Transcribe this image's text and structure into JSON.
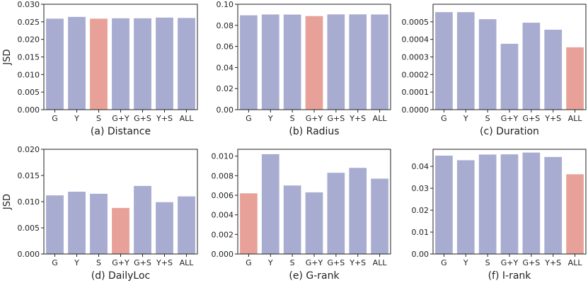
{
  "colors": {
    "default_bar": "#a8acd0",
    "highlight_bar": "#e8a198",
    "axis": "#222222"
  },
  "chart_data": [
    {
      "type": "bar",
      "title": "(a) Distance",
      "ylabel": "JSD",
      "categories": [
        "G",
        "Y",
        "S",
        "G+Y",
        "G+S",
        "Y+S",
        "ALL"
      ],
      "values": [
        0.0259,
        0.0264,
        0.0259,
        0.026,
        0.026,
        0.0262,
        0.0261
      ],
      "highlight": "S",
      "ylim": [
        0,
        0.03
      ],
      "yticks": [
        "0.000",
        "0.005",
        "0.010",
        "0.015",
        "0.020",
        "0.025",
        "0.030"
      ]
    },
    {
      "type": "bar",
      "title": "(b) Radius",
      "ylabel": "",
      "categories": [
        "G",
        "Y",
        "S",
        "G+Y",
        "G+S",
        "Y+S",
        "ALL"
      ],
      "values": [
        0.0895,
        0.0903,
        0.0902,
        0.0888,
        0.0904,
        0.0904,
        0.0903
      ],
      "highlight": "G+Y",
      "ylim": [
        0,
        0.1
      ],
      "yticks": [
        "0.00",
        "0.02",
        "0.04",
        "0.06",
        "0.08",
        "0.10"
      ]
    },
    {
      "type": "bar",
      "title": "(c) Duration",
      "ylabel": "",
      "categories": [
        "G",
        "Y",
        "S",
        "G+Y",
        "G+S",
        "Y+S",
        "ALL"
      ],
      "values": [
        0.000555,
        0.000555,
        0.000515,
        0.000375,
        0.000495,
        0.000455,
        0.000355
      ],
      "highlight": "ALL",
      "ylim": [
        0,
        0.0006
      ],
      "yticks": [
        "0.0000",
        "0.0001",
        "0.0002",
        "0.0003",
        "0.0004",
        "0.0005"
      ]
    },
    {
      "type": "bar",
      "title": "(d) DailyLoc",
      "ylabel": "JSD",
      "categories": [
        "G",
        "Y",
        "S",
        "G+Y",
        "G+S",
        "Y+S",
        "ALL"
      ],
      "values": [
        0.0112,
        0.0119,
        0.0115,
        0.0088,
        0.013,
        0.0099,
        0.011
      ],
      "highlight": "G+Y",
      "ylim": [
        0,
        0.02
      ],
      "yticks": [
        "0.000",
        "0.005",
        "0.010",
        "0.015",
        "0.020"
      ]
    },
    {
      "type": "bar",
      "title": "(e) G-rank",
      "ylabel": "",
      "categories": [
        "G",
        "Y",
        "S",
        "G+Y",
        "G+S",
        "Y+S",
        "ALL"
      ],
      "values": [
        0.0062,
        0.0102,
        0.007,
        0.0063,
        0.0083,
        0.0088,
        0.0077
      ],
      "highlight": "G",
      "ylim": [
        0,
        0.0107
      ],
      "yticks": [
        "0.000",
        "0.002",
        "0.004",
        "0.006",
        "0.008",
        "0.010"
      ]
    },
    {
      "type": "bar",
      "title": "(f) I-rank",
      "ylabel": "",
      "categories": [
        "G",
        "Y",
        "S",
        "G+Y",
        "G+S",
        "Y+S",
        "ALL"
      ],
      "values": [
        0.0449,
        0.0428,
        0.0454,
        0.0455,
        0.0463,
        0.0443,
        0.0364
      ],
      "highlight": "ALL",
      "ylim": [
        0,
        0.0478
      ],
      "yticks": [
        "0.00",
        "0.01",
        "0.02",
        "0.03",
        "0.04"
      ]
    }
  ]
}
